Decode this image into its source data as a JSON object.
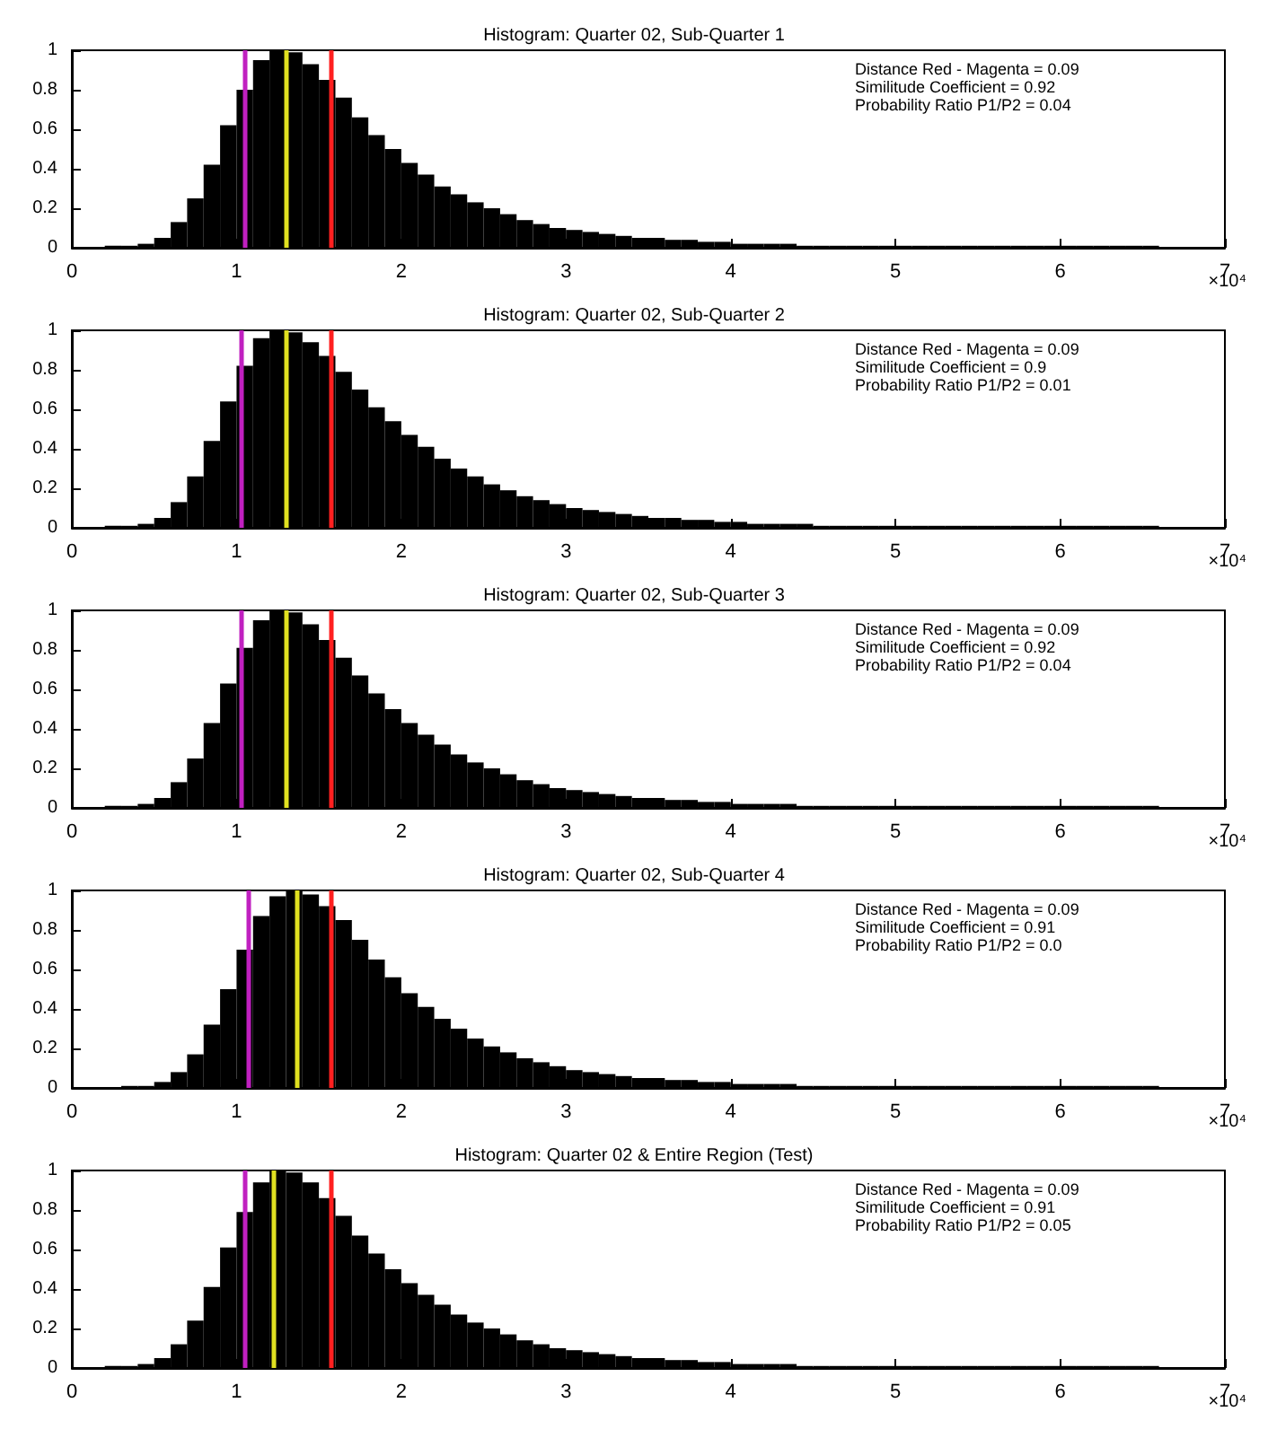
{
  "chart_data": [
    {
      "type": "histogram",
      "title": "Histogram: Quarter 02, Sub-Quarter 1",
      "xlabel": "×10⁴",
      "color": "#000000",
      "bins": [
        0,
        0.1,
        0.2,
        0.3,
        0.4,
        0.5,
        0.6,
        0.7,
        0.8,
        0.9,
        1,
        1.1,
        1.2,
        1.3,
        1.4,
        1.5,
        1.6,
        1.7,
        1.8,
        1.9,
        2,
        2.1,
        2.2,
        2.3,
        2.4,
        2.5,
        2.6,
        2.7,
        2.8,
        2.9,
        3,
        3.1,
        3.2,
        3.3,
        3.4,
        3.5,
        3.6,
        3.7,
        3.8,
        3.9,
        4,
        4.1,
        4.2,
        4.3,
        4.4,
        4.5,
        4.6,
        4.7,
        4.8,
        4.9,
        5,
        5.1,
        5.2,
        5.3,
        5.4,
        5.5,
        5.6,
        5.7,
        5.8,
        5.9,
        6,
        6.1,
        6.2,
        6.3,
        6.4,
        6.5,
        6.6
      ],
      "values": [
        0,
        0,
        0.01,
        0.01,
        0.02,
        0.05,
        0.13,
        0.25,
        0.42,
        0.62,
        0.8,
        0.95,
        1,
        0.99,
        0.93,
        0.85,
        0.76,
        0.66,
        0.57,
        0.5,
        0.43,
        0.37,
        0.31,
        0.27,
        0.23,
        0.2,
        0.17,
        0.14,
        0.12,
        0.1,
        0.09,
        0.08,
        0.07,
        0.06,
        0.05,
        0.05,
        0.04,
        0.04,
        0.03,
        0.03,
        0.02,
        0.02,
        0.02,
        0.02,
        0.01,
        0.01,
        0.01,
        0.01,
        0.01,
        0.01,
        0.01,
        0.01,
        0.01,
        0.01,
        0.01,
        0.01,
        0.01,
        0.01,
        0.01,
        0.01,
        0.01,
        0.01,
        0.01,
        0.01,
        0.01,
        0.01
      ],
      "xlim": [
        0,
        7
      ],
      "xticks": [
        0,
        1,
        2,
        3,
        4,
        5,
        6,
        7
      ],
      "ylim": [
        0,
        1
      ],
      "yticks": [
        0,
        0.2,
        0.4,
        0.6,
        0.8,
        1
      ],
      "ref_lines": [
        {
          "axis": "x",
          "value": 1.05,
          "color": "#c020c0"
        },
        {
          "axis": "x",
          "value": 1.3,
          "color": "#e0e020"
        },
        {
          "axis": "x",
          "value": 1.57,
          "color": "#ff2020"
        }
      ],
      "annotations": [
        "Distance Red - Magenta = 0.09",
        "Similitude Coefficient = 0.92",
        "Probability Ratio P1/P2 = 0.04"
      ]
    },
    {
      "type": "histogram",
      "title": "Histogram: Quarter 02, Sub-Quarter 2",
      "xlabel": "×10⁴",
      "color": "#000000",
      "bins": [
        0,
        0.1,
        0.2,
        0.3,
        0.4,
        0.5,
        0.6,
        0.7,
        0.8,
        0.9,
        1,
        1.1,
        1.2,
        1.3,
        1.4,
        1.5,
        1.6,
        1.7,
        1.8,
        1.9,
        2,
        2.1,
        2.2,
        2.3,
        2.4,
        2.5,
        2.6,
        2.7,
        2.8,
        2.9,
        3,
        3.1,
        3.2,
        3.3,
        3.4,
        3.5,
        3.6,
        3.7,
        3.8,
        3.9,
        4,
        4.1,
        4.2,
        4.3,
        4.4,
        4.5,
        4.6,
        4.7,
        4.8,
        4.9,
        5,
        5.1,
        5.2,
        5.3,
        5.4,
        5.5,
        5.6,
        5.7,
        5.8,
        5.9,
        6,
        6.1,
        6.2,
        6.3,
        6.4,
        6.5,
        6.6
      ],
      "values": [
        0,
        0,
        0.01,
        0.01,
        0.02,
        0.05,
        0.13,
        0.26,
        0.44,
        0.64,
        0.82,
        0.96,
        1,
        0.99,
        0.94,
        0.87,
        0.79,
        0.7,
        0.61,
        0.54,
        0.47,
        0.41,
        0.35,
        0.3,
        0.26,
        0.22,
        0.19,
        0.16,
        0.14,
        0.12,
        0.1,
        0.09,
        0.08,
        0.07,
        0.06,
        0.05,
        0.05,
        0.04,
        0.04,
        0.03,
        0.03,
        0.02,
        0.02,
        0.02,
        0.02,
        0.01,
        0.01,
        0.01,
        0.01,
        0.01,
        0.01,
        0.01,
        0.01,
        0.01,
        0.01,
        0.01,
        0.01,
        0.01,
        0.01,
        0.01,
        0.01,
        0.01,
        0.01,
        0.01,
        0.01,
        0.01
      ],
      "xlim": [
        0,
        7
      ],
      "xticks": [
        0,
        1,
        2,
        3,
        4,
        5,
        6,
        7
      ],
      "ylim": [
        0,
        1
      ],
      "yticks": [
        0,
        0.2,
        0.4,
        0.6,
        0.8,
        1
      ],
      "ref_lines": [
        {
          "axis": "x",
          "value": 1.03,
          "color": "#c020c0"
        },
        {
          "axis": "x",
          "value": 1.3,
          "color": "#e0e020"
        },
        {
          "axis": "x",
          "value": 1.57,
          "color": "#ff2020"
        }
      ],
      "annotations": [
        "Distance Red - Magenta = 0.09",
        "Similitude Coefficient = 0.9",
        "Probability Ratio P1/P2 = 0.01"
      ]
    },
    {
      "type": "histogram",
      "title": "Histogram: Quarter 02, Sub-Quarter 3",
      "xlabel": "×10⁴",
      "color": "#000000",
      "bins": [
        0,
        0.1,
        0.2,
        0.3,
        0.4,
        0.5,
        0.6,
        0.7,
        0.8,
        0.9,
        1,
        1.1,
        1.2,
        1.3,
        1.4,
        1.5,
        1.6,
        1.7,
        1.8,
        1.9,
        2,
        2.1,
        2.2,
        2.3,
        2.4,
        2.5,
        2.6,
        2.7,
        2.8,
        2.9,
        3,
        3.1,
        3.2,
        3.3,
        3.4,
        3.5,
        3.6,
        3.7,
        3.8,
        3.9,
        4,
        4.1,
        4.2,
        4.3,
        4.4,
        4.5,
        4.6,
        4.7,
        4.8,
        4.9,
        5,
        5.1,
        5.2,
        5.3,
        5.4,
        5.5,
        5.6,
        5.7,
        5.8,
        5.9,
        6,
        6.1,
        6.2,
        6.3,
        6.4,
        6.5,
        6.6
      ],
      "values": [
        0,
        0,
        0.01,
        0.01,
        0.02,
        0.05,
        0.13,
        0.25,
        0.43,
        0.63,
        0.81,
        0.95,
        1,
        0.99,
        0.93,
        0.85,
        0.76,
        0.67,
        0.58,
        0.5,
        0.43,
        0.37,
        0.32,
        0.27,
        0.23,
        0.2,
        0.17,
        0.14,
        0.12,
        0.1,
        0.09,
        0.08,
        0.07,
        0.06,
        0.05,
        0.05,
        0.04,
        0.04,
        0.03,
        0.03,
        0.02,
        0.02,
        0.02,
        0.02,
        0.01,
        0.01,
        0.01,
        0.01,
        0.01,
        0.01,
        0.01,
        0.01,
        0.01,
        0.01,
        0.01,
        0.01,
        0.01,
        0.01,
        0.01,
        0.01,
        0.01,
        0.01,
        0.01,
        0.01,
        0.01,
        0.01
      ],
      "xlim": [
        0,
        7
      ],
      "xticks": [
        0,
        1,
        2,
        3,
        4,
        5,
        6,
        7
      ],
      "ylim": [
        0,
        1
      ],
      "yticks": [
        0,
        0.2,
        0.4,
        0.6,
        0.8,
        1
      ],
      "ref_lines": [
        {
          "axis": "x",
          "value": 1.03,
          "color": "#c020c0"
        },
        {
          "axis": "x",
          "value": 1.3,
          "color": "#e0e020"
        },
        {
          "axis": "x",
          "value": 1.57,
          "color": "#ff2020"
        }
      ],
      "annotations": [
        "Distance Red - Magenta = 0.09",
        "Similitude Coefficient = 0.92",
        "Probability Ratio P1/P2 = 0.04"
      ]
    },
    {
      "type": "histogram",
      "title": "Histogram: Quarter 02, Sub-Quarter 4",
      "xlabel": "×10⁴",
      "color": "#000000",
      "bins": [
        0,
        0.1,
        0.2,
        0.3,
        0.4,
        0.5,
        0.6,
        0.7,
        0.8,
        0.9,
        1,
        1.1,
        1.2,
        1.3,
        1.4,
        1.5,
        1.6,
        1.7,
        1.8,
        1.9,
        2,
        2.1,
        2.2,
        2.3,
        2.4,
        2.5,
        2.6,
        2.7,
        2.8,
        2.9,
        3,
        3.1,
        3.2,
        3.3,
        3.4,
        3.5,
        3.6,
        3.7,
        3.8,
        3.9,
        4,
        4.1,
        4.2,
        4.3,
        4.4,
        4.5,
        4.6,
        4.7,
        4.8,
        4.9,
        5,
        5.1,
        5.2,
        5.3,
        5.4,
        5.5,
        5.6,
        5.7,
        5.8,
        5.9,
        6,
        6.1,
        6.2,
        6.3,
        6.4,
        6.5,
        6.6
      ],
      "values": [
        0,
        0,
        0,
        0.01,
        0.01,
        0.03,
        0.08,
        0.17,
        0.32,
        0.5,
        0.7,
        0.87,
        0.97,
        1,
        0.98,
        0.92,
        0.85,
        0.75,
        0.65,
        0.56,
        0.48,
        0.41,
        0.35,
        0.3,
        0.25,
        0.21,
        0.18,
        0.15,
        0.13,
        0.11,
        0.09,
        0.08,
        0.07,
        0.06,
        0.05,
        0.05,
        0.04,
        0.04,
        0.03,
        0.03,
        0.02,
        0.02,
        0.02,
        0.02,
        0.01,
        0.01,
        0.01,
        0.01,
        0.01,
        0.01,
        0.01,
        0.01,
        0.01,
        0.01,
        0.01,
        0.01,
        0.01,
        0.01,
        0.01,
        0.01,
        0.01,
        0.01,
        0.01,
        0.01,
        0.01,
        0.01
      ],
      "xlim": [
        0,
        7
      ],
      "xticks": [
        0,
        1,
        2,
        3,
        4,
        5,
        6,
        7
      ],
      "ylim": [
        0,
        1
      ],
      "yticks": [
        0,
        0.2,
        0.4,
        0.6,
        0.8,
        1
      ],
      "ref_lines": [
        {
          "axis": "x",
          "value": 1.07,
          "color": "#c020c0"
        },
        {
          "axis": "x",
          "value": 1.37,
          "color": "#e0e020"
        },
        {
          "axis": "x",
          "value": 1.57,
          "color": "#ff2020"
        }
      ],
      "annotations": [
        "Distance Red - Magenta = 0.09",
        "Similitude Coefficient = 0.91",
        "Probability Ratio P1/P2 = 0.0"
      ]
    },
    {
      "type": "histogram",
      "title": "Histogram: Quarter 02 & Entire Region (Test)",
      "xlabel": "×10⁴",
      "color": "#000000",
      "bins": [
        0,
        0.1,
        0.2,
        0.3,
        0.4,
        0.5,
        0.6,
        0.7,
        0.8,
        0.9,
        1,
        1.1,
        1.2,
        1.3,
        1.4,
        1.5,
        1.6,
        1.7,
        1.8,
        1.9,
        2,
        2.1,
        2.2,
        2.3,
        2.4,
        2.5,
        2.6,
        2.7,
        2.8,
        2.9,
        3,
        3.1,
        3.2,
        3.3,
        3.4,
        3.5,
        3.6,
        3.7,
        3.8,
        3.9,
        4,
        4.1,
        4.2,
        4.3,
        4.4,
        4.5,
        4.6,
        4.7,
        4.8,
        4.9,
        5,
        5.1,
        5.2,
        5.3,
        5.4,
        5.5,
        5.6,
        5.7,
        5.8,
        5.9,
        6,
        6.1,
        6.2,
        6.3,
        6.4,
        6.5,
        6.6
      ],
      "values": [
        0,
        0,
        0.01,
        0.01,
        0.02,
        0.05,
        0.12,
        0.24,
        0.41,
        0.61,
        0.79,
        0.94,
        1,
        0.99,
        0.94,
        0.86,
        0.77,
        0.67,
        0.58,
        0.5,
        0.43,
        0.37,
        0.32,
        0.27,
        0.23,
        0.2,
        0.17,
        0.14,
        0.12,
        0.1,
        0.09,
        0.08,
        0.07,
        0.06,
        0.05,
        0.05,
        0.04,
        0.04,
        0.03,
        0.03,
        0.02,
        0.02,
        0.02,
        0.02,
        0.01,
        0.01,
        0.01,
        0.01,
        0.01,
        0.01,
        0.01,
        0.01,
        0.01,
        0.01,
        0.01,
        0.01,
        0.01,
        0.01,
        0.01,
        0.01,
        0.01,
        0.01,
        0.01,
        0.01,
        0.01,
        0.01
      ],
      "xlim": [
        0,
        7
      ],
      "xticks": [
        0,
        1,
        2,
        3,
        4,
        5,
        6,
        7
      ],
      "ylim": [
        0,
        1
      ],
      "yticks": [
        0,
        0.2,
        0.4,
        0.6,
        0.8,
        1
      ],
      "ref_lines": [
        {
          "axis": "x",
          "value": 1.05,
          "color": "#c020c0"
        },
        {
          "axis": "x",
          "value": 1.22,
          "color": "#e0e020"
        },
        {
          "axis": "x",
          "value": 1.57,
          "color": "#ff2020"
        }
      ],
      "annotations": [
        "Distance Red - Magenta = 0.09",
        "Similitude Coefficient = 0.91",
        "Probability Ratio P1/P2 = 0.05"
      ]
    }
  ]
}
